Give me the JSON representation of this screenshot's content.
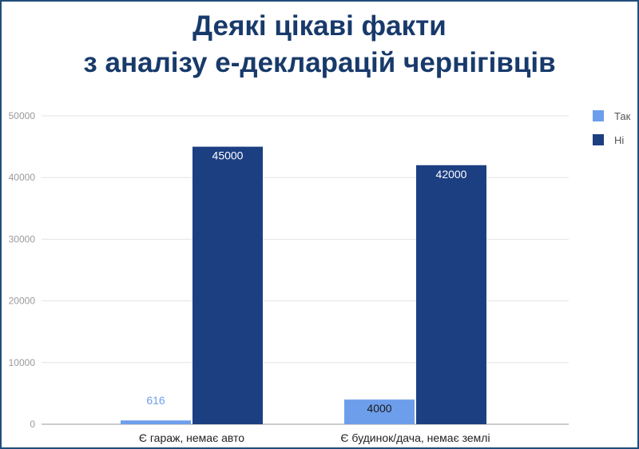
{
  "title_lines": [
    "Деякі цікаві факти",
    "з аналізу е-декларацій чернігівців"
  ],
  "colors": {
    "series_tak": "#6d9eeb",
    "series_ni": "#1c3f82",
    "title": "#183a6b",
    "grid": "#e3e3e3"
  },
  "chart_data": {
    "type": "bar",
    "categories": [
      "Є гараж, немає авто",
      "Є будинок/дача, немає землі"
    ],
    "series": [
      {
        "name": "Так",
        "values": [
          616,
          4000
        ]
      },
      {
        "name": "Ні",
        "values": [
          45000,
          42000
        ]
      }
    ],
    "ylim": [
      0,
      50000
    ],
    "yticks": [
      "0",
      "10000",
      "20000",
      "30000",
      "40000",
      "50000"
    ],
    "grid": true,
    "legend": "top-right",
    "data_labels": true
  }
}
